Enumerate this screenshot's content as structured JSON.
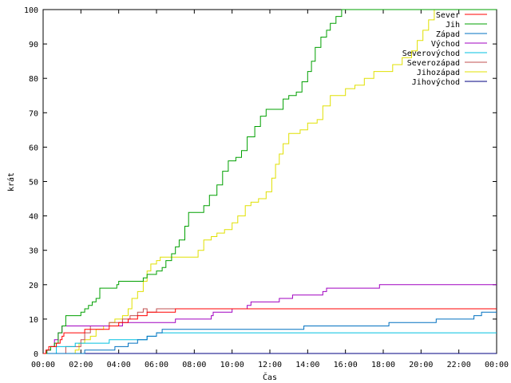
{
  "chart_data": {
    "type": "line",
    "xlabel": "Čas",
    "ylabel": "krát",
    "xlim_hours": [
      0,
      24
    ],
    "ylim": [
      0,
      100
    ],
    "x_ticks": [
      "00:00",
      "02:00",
      "04:00",
      "06:00",
      "08:00",
      "10:00",
      "12:00",
      "14:00",
      "16:00",
      "18:00",
      "20:00",
      "22:00",
      "00:00"
    ],
    "y_ticks": [
      0,
      10,
      20,
      30,
      40,
      50,
      60,
      70,
      80,
      90,
      100
    ],
    "grid": false,
    "legend_position": "top-right",
    "series": [
      {
        "name": "Sever",
        "color": "#ff0000",
        "points": [
          [
            0,
            0
          ],
          [
            0.15,
            1
          ],
          [
            0.3,
            2
          ],
          [
            0.5,
            2
          ],
          [
            0.7,
            3
          ],
          [
            0.9,
            4
          ],
          [
            1.0,
            5
          ],
          [
            1.1,
            6
          ],
          [
            1.5,
            6
          ],
          [
            1.8,
            6
          ],
          [
            2.0,
            6
          ],
          [
            2.2,
            7
          ],
          [
            3.0,
            7
          ],
          [
            3.5,
            8
          ],
          [
            3.7,
            8
          ],
          [
            4.0,
            9
          ],
          [
            4.5,
            10
          ],
          [
            5.0,
            11
          ],
          [
            5.3,
            11
          ],
          [
            5.5,
            12
          ],
          [
            6.5,
            12
          ],
          [
            6.8,
            12
          ],
          [
            7.0,
            13
          ],
          [
            24,
            13
          ]
        ]
      },
      {
        "name": "Jih",
        "color": "#00a000",
        "points": [
          [
            0,
            0
          ],
          [
            0.2,
            1
          ],
          [
            0.4,
            2
          ],
          [
            0.6,
            3
          ],
          [
            0.8,
            6
          ],
          [
            1.0,
            8
          ],
          [
            1.2,
            11
          ],
          [
            1.5,
            11
          ],
          [
            1.8,
            11
          ],
          [
            2.0,
            12
          ],
          [
            2.2,
            13
          ],
          [
            2.4,
            14
          ],
          [
            2.6,
            15
          ],
          [
            2.8,
            16
          ],
          [
            3.0,
            19
          ],
          [
            3.5,
            19
          ],
          [
            3.9,
            20
          ],
          [
            4.0,
            21
          ],
          [
            5.0,
            21
          ],
          [
            5.3,
            22
          ],
          [
            5.5,
            23
          ],
          [
            5.8,
            23
          ],
          [
            6.0,
            24
          ],
          [
            6.3,
            25
          ],
          [
            6.5,
            27
          ],
          [
            6.8,
            29
          ],
          [
            7.0,
            31
          ],
          [
            7.2,
            33
          ],
          [
            7.5,
            37
          ],
          [
            7.7,
            41
          ],
          [
            8.2,
            41
          ],
          [
            8.5,
            43
          ],
          [
            8.8,
            46
          ],
          [
            9.2,
            49
          ],
          [
            9.5,
            53
          ],
          [
            9.8,
            56
          ],
          [
            10.2,
            57
          ],
          [
            10.5,
            59
          ],
          [
            10.8,
            63
          ],
          [
            11.2,
            66
          ],
          [
            11.5,
            69
          ],
          [
            11.8,
            71
          ],
          [
            12.5,
            71
          ],
          [
            12.7,
            74
          ],
          [
            13.0,
            75
          ],
          [
            13.4,
            76
          ],
          [
            13.7,
            79
          ],
          [
            14.0,
            82
          ],
          [
            14.2,
            85
          ],
          [
            14.4,
            89
          ],
          [
            14.7,
            92
          ],
          [
            15.0,
            94
          ],
          [
            15.2,
            96
          ],
          [
            15.5,
            98
          ],
          [
            15.8,
            100
          ],
          [
            24,
            100
          ]
        ]
      },
      {
        "name": "Západ",
        "color": "#0070c0",
        "points": [
          [
            0,
            0
          ],
          [
            2.0,
            0
          ],
          [
            2.2,
            1
          ],
          [
            3.5,
            1
          ],
          [
            3.8,
            2
          ],
          [
            4.5,
            3
          ],
          [
            5.0,
            4
          ],
          [
            5.5,
            5
          ],
          [
            6.0,
            6
          ],
          [
            6.3,
            7
          ],
          [
            13.5,
            7
          ],
          [
            13.8,
            8
          ],
          [
            18.0,
            8
          ],
          [
            18.3,
            9
          ],
          [
            20.5,
            9
          ],
          [
            20.8,
            10
          ],
          [
            22.5,
            10
          ],
          [
            22.8,
            11
          ],
          [
            23.2,
            12
          ],
          [
            24,
            12
          ]
        ]
      },
      {
        "name": "Východ",
        "color": "#a000c0",
        "points": [
          [
            0,
            0
          ],
          [
            0.2,
            1
          ],
          [
            0.4,
            2
          ],
          [
            0.6,
            4
          ],
          [
            0.8,
            6
          ],
          [
            1.0,
            8
          ],
          [
            3.8,
            8
          ],
          [
            4.2,
            9
          ],
          [
            4.5,
            9
          ],
          [
            5.0,
            9
          ],
          [
            5.5,
            9
          ],
          [
            6.0,
            9
          ],
          [
            6.5,
            9
          ],
          [
            7.0,
            10
          ],
          [
            8.5,
            10
          ],
          [
            8.9,
            11
          ],
          [
            9.0,
            12
          ],
          [
            9.5,
            12
          ],
          [
            10.0,
            13
          ],
          [
            10.5,
            13
          ],
          [
            10.8,
            14
          ],
          [
            11.0,
            15
          ],
          [
            12.0,
            15
          ],
          [
            12.5,
            16
          ],
          [
            13.0,
            16
          ],
          [
            13.2,
            17
          ],
          [
            14.5,
            17
          ],
          [
            14.8,
            18
          ],
          [
            15.0,
            19
          ],
          [
            17.5,
            19
          ],
          [
            17.8,
            20
          ],
          [
            24,
            20
          ]
        ]
      },
      {
        "name": "Severovýchod",
        "color": "#00c0e0",
        "points": [
          [
            0,
            0
          ],
          [
            0.5,
            0
          ],
          [
            0.7,
            2
          ],
          [
            1.5,
            2
          ],
          [
            1.7,
            3
          ],
          [
            2.5,
            3
          ],
          [
            3.0,
            3
          ],
          [
            3.5,
            4
          ],
          [
            4.0,
            4
          ],
          [
            4.5,
            4
          ],
          [
            5.0,
            4
          ],
          [
            5.5,
            5
          ],
          [
            6.0,
            6
          ],
          [
            24,
            6
          ]
        ]
      },
      {
        "name": "Severozápad",
        "color": "#c05050",
        "points": [
          [
            0,
            0
          ],
          [
            1.0,
            0
          ],
          [
            1.2,
            2
          ],
          [
            1.7,
            2
          ],
          [
            2.0,
            4
          ],
          [
            2.2,
            6
          ],
          [
            2.5,
            8
          ],
          [
            3.0,
            8
          ],
          [
            3.5,
            9
          ],
          [
            4.0,
            9
          ],
          [
            4.2,
            10
          ],
          [
            4.6,
            11
          ],
          [
            5.0,
            12
          ],
          [
            5.3,
            13
          ],
          [
            5.5,
            12
          ],
          [
            6.0,
            13
          ],
          [
            24,
            13
          ]
        ]
      },
      {
        "name": "Jihozápad",
        "color": "#e0e000",
        "points": [
          [
            0,
            0
          ],
          [
            1.5,
            0
          ],
          [
            1.7,
            1
          ],
          [
            1.9,
            3
          ],
          [
            2.2,
            4
          ],
          [
            2.5,
            5
          ],
          [
            2.8,
            7
          ],
          [
            3.0,
            7
          ],
          [
            3.2,
            8
          ],
          [
            3.5,
            9
          ],
          [
            3.8,
            10
          ],
          [
            4.2,
            11
          ],
          [
            4.5,
            13
          ],
          [
            4.7,
            16
          ],
          [
            5.0,
            18
          ],
          [
            5.3,
            21
          ],
          [
            5.5,
            24
          ],
          [
            5.7,
            26
          ],
          [
            6.0,
            27
          ],
          [
            6.2,
            28
          ],
          [
            7.2,
            28
          ],
          [
            8.0,
            28
          ],
          [
            8.2,
            30
          ],
          [
            8.5,
            33
          ],
          [
            8.9,
            34
          ],
          [
            9.2,
            35
          ],
          [
            9.6,
            36
          ],
          [
            10.0,
            38
          ],
          [
            10.3,
            40
          ],
          [
            10.7,
            43
          ],
          [
            11.0,
            44
          ],
          [
            11.4,
            45
          ],
          [
            11.8,
            47
          ],
          [
            12.1,
            51
          ],
          [
            12.3,
            55
          ],
          [
            12.5,
            58
          ],
          [
            12.7,
            61
          ],
          [
            13.0,
            64
          ],
          [
            13.3,
            64
          ],
          [
            13.6,
            65
          ],
          [
            14.0,
            67
          ],
          [
            14.5,
            68
          ],
          [
            14.8,
            72
          ],
          [
            15.2,
            75
          ],
          [
            15.5,
            75
          ],
          [
            16.0,
            77
          ],
          [
            16.5,
            78
          ],
          [
            17.0,
            80
          ],
          [
            17.5,
            82
          ],
          [
            18.0,
            82
          ],
          [
            18.5,
            84
          ],
          [
            19.0,
            86
          ],
          [
            19.5,
            88
          ],
          [
            19.8,
            91
          ],
          [
            20.1,
            94
          ],
          [
            20.4,
            97
          ],
          [
            20.7,
            100
          ],
          [
            24,
            100
          ]
        ]
      },
      {
        "name": "Jihovýchod",
        "color": "#000080",
        "points": [
          [
            0,
            0
          ],
          [
            24,
            0
          ]
        ]
      }
    ]
  }
}
